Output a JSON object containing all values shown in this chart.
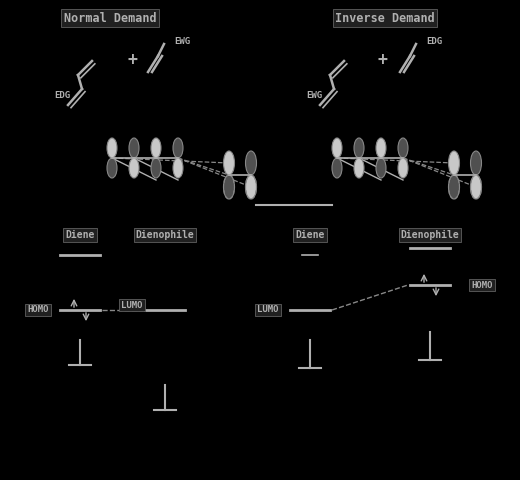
{
  "bg_color": "#000000",
  "tc": "#b0b0b0",
  "left_title": "Normal Demand",
  "right_title": "Inverse Demand",
  "edg": "EDG",
  "ewg": "EWG",
  "homo": "HOMO",
  "lumo": "LUMO",
  "diene": "Diene",
  "dienophile": "Dienophile",
  "orb_fill_light": "#c8c8c8",
  "orb_fill_dark": "#505050",
  "orb_edge": "#888888",
  "line_color": "#b0b0b0",
  "dashed_color": "#888888"
}
